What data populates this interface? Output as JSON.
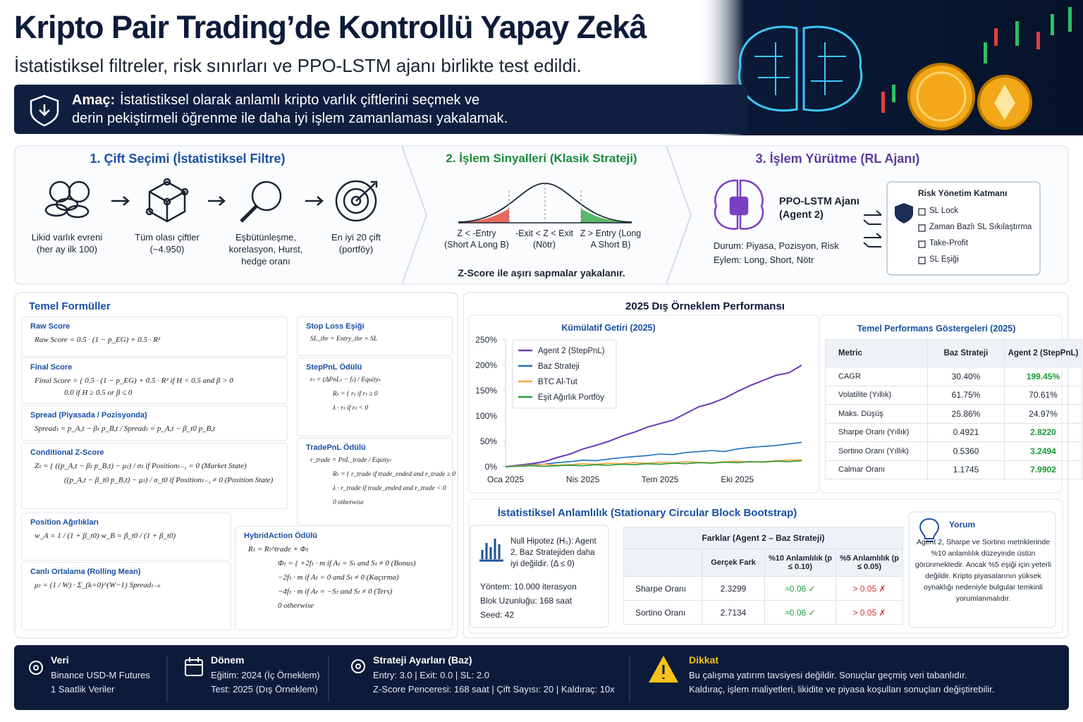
{
  "header": {
    "title": "Kripto Pair Trading’de Kontrollü Yapay Zekâ",
    "subtitle": "İstatistiksel filtreler, risk sınırları ve PPO-LSTM ajanı birlikte test edildi.",
    "goal_label": "Amaç:",
    "goal_lines": [
      "İstatistiksel olarak anlamlı kripto varlık çiftlerini seçmek ve",
      "derin pekiştirmeli öğrenme ile daha iyi işlem zamanlaması yakalamak."
    ]
  },
  "pipeline": {
    "step1": {
      "title": "1. Çift Seçimi (İstatistiksel Filtre)",
      "items": [
        "Likid varlık evreni (her ay ilk 100)",
        "Tüm olası çiftler (~4.950)",
        "Eşbütünleşme, korelasyon, Hurst, hedge oranı",
        "En iyi 20 çift (portföy)"
      ]
    },
    "step2": {
      "title": "2. İşlem Sinyalleri (Klasik Strateji)",
      "zones": [
        "Z < -Entry (Short A Long B)",
        "-Exit < Z < Exit (Nötr)",
        "Z > Entry (Long A Short B)"
      ],
      "caption": "Z-Score ile aşırı sapmalar yakalanır."
    },
    "step3": {
      "title": "3. İşlem Yürütme (RL Ajanı)",
      "agent": "PPO-LSTM Ajanı (Agent 2)",
      "state": "Durum: Piyasa, Pozisyon, Risk",
      "action": "Eylem: Long, Short, Nötr",
      "risk_title": "Risk Yönetim Katmanı",
      "risk_items": [
        "SL Lock",
        "Zaman Bazlı SL Sıkılaştırma",
        "Take-Profit",
        "SL Eşiği"
      ]
    }
  },
  "formulas": {
    "title": "Temel Formüller",
    "items": [
      {
        "name": "Raw Score",
        "lines": [
          "Raw Score = 0.5 · (1 − p_EG) + 0.5 · R²"
        ]
      },
      {
        "name": "Final Score",
        "lines": [
          "Final Score = { 0.5 · (1 − p_EG) + 0.5 · R²   if H < 0.5 and β > 0",
          "0.0   if H ≥ 0.5 or β ≤ 0"
        ]
      },
      {
        "name": "Spread (Piyasada / Pozisyonda)",
        "lines": [
          "Spreadₜ = p_A,t − βₜ p_B,t   /   Spreadₜ = p_A,t − β_t0 p_B,t"
        ]
      },
      {
        "name": "Conditional Z-Score",
        "lines": [
          "Zₜ = { ((p_A,t − βₜ p_B,t) − μₜ) / σₜ   if Positionₜ₋₁ = 0 (Market State)",
          "((p_A,t − β_t0 p_B,t) − μₜ) / σ_t0   if Positionₜ₋₁ ≠ 0 (Position State)"
        ]
      },
      {
        "name": "Position Ağırlıkları",
        "lines": [
          "w_A = 1 / (1 + β_t0)      w_B = β_t0 / (1 + β_t0)"
        ]
      },
      {
        "name": "Canlı Ortalama (Rolling Mean)",
        "lines": [
          "μₜ = (1 / W) · Σ_(k=0)^(W−1) Spreadₜ₋ₖ"
        ]
      },
      {
        "name": "Stop Loss Eşiği",
        "lines": [
          "SL_thr = Entry_thr × SL"
        ]
      },
      {
        "name": "StepPnL Ödülü",
        "lines": [
          "rₜ = (ΔPnLₜ − fₜ) / Equityₜ",
          "Rₜ = { rₜ   if rₜ ≥ 0",
          "λ · rₜ   if rₜ < 0"
        ]
      },
      {
        "name": "TradePnL Ödülü",
        "lines": [
          "r_trade = PnL_trade / Equityₜ",
          "Rₜ = { r_trade   if trade_ended and r_trade ≥ 0",
          "λ · r_trade   if trade_ended and r_trade < 0",
          "0   otherwise"
        ]
      },
      {
        "name": "HybridAction Ödülü",
        "lines": [
          "Rₜ = Rₜ^trade + Φₜ",
          "Φₜ = { +2fₜ · m   if Aₜ = Sₜ and Sₜ ≠ 0 (Bonus)",
          "−2fₜ · m   if Aₜ = 0 and Sₜ ≠ 0 (Kaçırma)",
          "−4fₜ · m   if Aₜ = −Sₜ and Sₜ ≠ 0 (Ters)",
          "0   otherwise"
        ]
      }
    ]
  },
  "performance": {
    "title": "2025 Dış Örneklem Performansı"
  },
  "chart_data": {
    "type": "line",
    "title": "Kümülatif Getiri (2025)",
    "categories": [
      "Oca 2025",
      null,
      null,
      null,
      null,
      null,
      "Nis 2025",
      null,
      null,
      null,
      null,
      null,
      "Tem 2025",
      null,
      null,
      null,
      null,
      null,
      "Eki 2025",
      null,
      null,
      null,
      null,
      null
    ],
    "series": [
      {
        "name": "Agent 2 (StepPnL)",
        "color": "#6a3ab8",
        "values": [
          0,
          3,
          6,
          10,
          18,
          25,
          35,
          42,
          50,
          60,
          68,
          78,
          85,
          92,
          105,
          118,
          125,
          135,
          148,
          160,
          170,
          180,
          185,
          200
        ]
      },
      {
        "name": "Baz Strateji",
        "color": "#1f6fc0",
        "values": [
          0,
          2,
          4,
          5,
          8,
          10,
          13,
          12,
          15,
          18,
          20,
          22,
          25,
          24,
          28,
          30,
          32,
          30,
          35,
          38,
          40,
          42,
          45,
          48
        ]
      },
      {
        "name": "BTC Al-Tut",
        "color": "#f2a53a",
        "values": [
          0,
          2,
          3,
          5,
          3,
          4,
          6,
          5,
          7,
          6,
          8,
          7,
          9,
          8,
          10,
          9,
          8,
          10,
          11,
          9,
          10,
          12,
          13,
          14
        ]
      },
      {
        "name": "Eşit Ağırlık Portföy",
        "color": "#2a9a3a",
        "values": [
          0,
          1,
          2,
          1,
          2,
          3,
          2,
          4,
          3,
          5,
          4,
          6,
          5,
          7,
          6,
          8,
          7,
          9,
          8,
          10,
          9,
          11,
          10,
          12
        ]
      }
    ],
    "ylim": [
      0,
      250
    ],
    "yticks": [
      {
        "value": 0,
        "label": "0%"
      },
      {
        "value": 50,
        "label": "50%"
      },
      {
        "value": 100,
        "label": "100%"
      },
      {
        "value": 150,
        "label": "150%"
      },
      {
        "value": 200,
        "label": "200%"
      },
      {
        "value": 250,
        "label": "250%"
      }
    ],
    "grid": false,
    "legend": "upper left"
  },
  "kpi": {
    "title": "Temel Performans Göstergeleri (2025)",
    "header": [
      "Metric",
      "Baz Strateji",
      "Agent 2 (StepPnL)"
    ],
    "rows": [
      [
        "CAGR",
        "30.40%",
        "199.45%"
      ],
      [
        "Volatilite (Yıllık)",
        "61.75%",
        "70.61%"
      ],
      [
        "Maks. Düşüş",
        "25.86%",
        "24.97%"
      ],
      [
        "Sharpe Oranı (Yıllık)",
        "0.4921",
        "2.8220"
      ],
      [
        "Sortino Oranı (Yıllık)",
        "0.5360",
        "3.2494"
      ],
      [
        "Calmar Oranı",
        "1.1745",
        "7.9902"
      ]
    ]
  },
  "bootstrap": {
    "title": "İstatistiksel Anlamlılık (Stationary Circular Block Bootstrap)",
    "null_hypothesis": "Null Hipotez (H₀): Agent 2, Baz Stratejiden daha iyi değildir. (Δ ≤ 0)",
    "method": [
      "Yöntem: 10.000 iterasyon",
      "Blok Uzunluğu: 168 saat",
      "Seed: 42"
    ],
    "table_title": "Farklar (Agent 2 – Baz Strateji)",
    "header": [
      "Gerçek Fark",
      "%10 Anlamlılık (p ≤ 0.10)",
      "%5 Anlamlılık (p ≤ 0.05)"
    ],
    "rows": [
      [
        "Sharpe Oranı",
        "2.3299",
        "≈0.06 ✓",
        "> 0.05 ✗"
      ],
      [
        "Sortino Oranı",
        "2.7134",
        "≈0.06 ✓",
        "> 0.05 ✗"
      ]
    ],
    "comment_title": "Yorum",
    "comment": "Agent 2, Sharpe ve Sortino metriklerinde %10 anlamlılık düzeyinde üstün görünmektedir. Ancak %5 eşiği için yeterli değildir. Kripto piyasalarının yüksek oynaklığı nedeniyle bulgular temkinli yorumlanmalıdır."
  },
  "footer": [
    {
      "title": "Veri",
      "lines": [
        "Binance USD-M Futures",
        "1 Saatlik Veriler"
      ]
    },
    {
      "title": "Dönem",
      "lines": [
        "Eğitim: 2024 (İç Örneklem)",
        "Test: 2025 (Dış Örneklem)"
      ]
    },
    {
      "title": "Strateji Ayarları (Baz)",
      "lines": [
        "Entry: 3.0 | Exit: 0.0 | SL: 2.0",
        "Z-Score Penceresi: 168 saat | Çift Sayısı: 20 | Kaldıraç: 10x"
      ]
    },
    {
      "title": "Dikkat",
      "lines": [
        "Bu çalışma yatırım tavsiyesi değildir. Sonuçlar geçmiş veri tabanlıdır.",
        "Kaldıraç, işlem maliyetleri, likidite ve piyasa koşulları sonuçları değiştirebilir."
      ]
    }
  ]
}
